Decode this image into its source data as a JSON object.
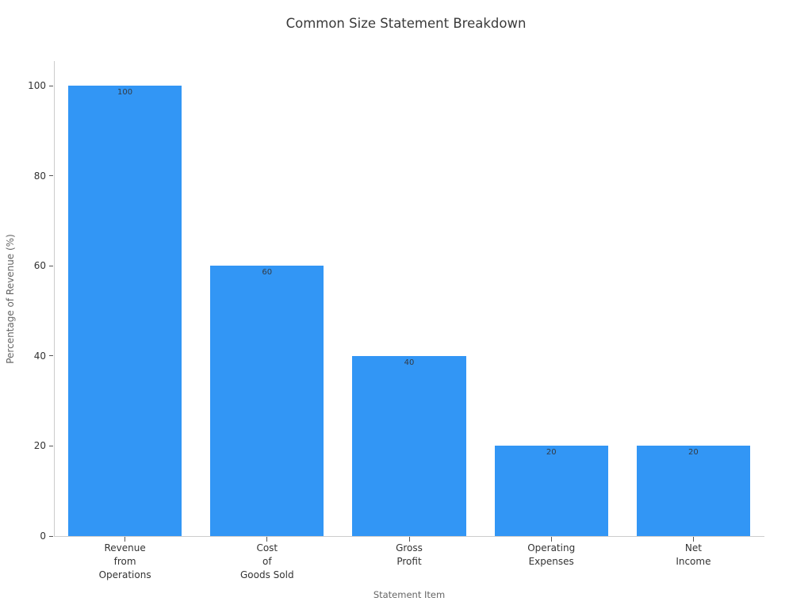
{
  "chart_data": {
    "type": "bar",
    "title": "Common Size Statement Breakdown",
    "xlabel": "Statement Item",
    "ylabel": "Percentage of Revenue (%)",
    "categories": [
      "Revenue\nfrom\nOperations",
      "Cost\nof\nGoods Sold",
      "Gross\nProfit",
      "Operating\nExpenses",
      "Net\nIncome"
    ],
    "values": [
      100,
      60,
      40,
      20,
      20
    ],
    "bar_labels": [
      "100",
      "60",
      "40",
      "20",
      "20"
    ],
    "yticks": [
      0,
      20,
      40,
      60,
      80,
      100
    ],
    "ylim": [
      0,
      105.5
    ],
    "bar_width_fraction": 0.8,
    "grid": false,
    "legend": false,
    "colors": {
      "bar": "#3296F5",
      "title": "#3a3a3a",
      "axis_title": "#666666",
      "tick_label": "#333333",
      "bar_label": "#333a44",
      "spine": "#cccccc",
      "tick_mark": "#555555"
    }
  }
}
